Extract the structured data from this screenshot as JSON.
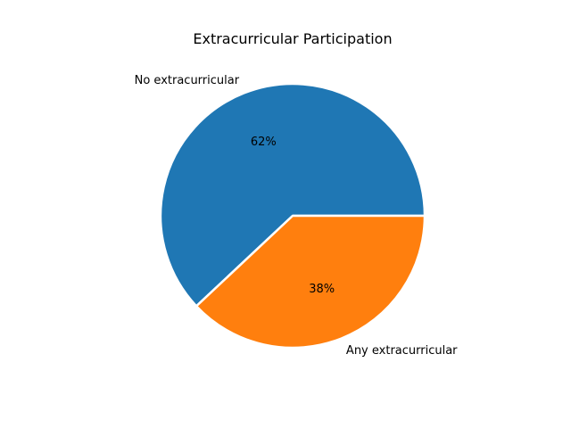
{
  "chart_data": {
    "type": "pie",
    "title": "Extracurricular Participation",
    "slices": [
      {
        "label": "No extracurricular",
        "value": 62,
        "pct_label": "62%",
        "color": "#1f77b4"
      },
      {
        "label": "Any extracurricular",
        "value": 38,
        "pct_label": "38%",
        "color": "#ff7f0e"
      }
    ],
    "start_angle_deg": 0,
    "direction": "counterclockwise",
    "wedge_edge_color": "#ffffff"
  }
}
